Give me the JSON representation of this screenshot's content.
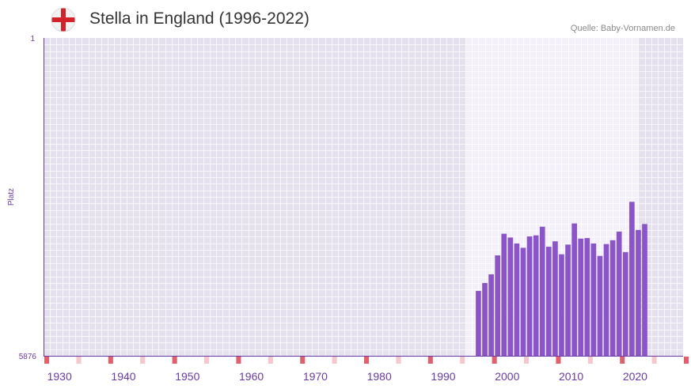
{
  "header": {
    "title": "Stella in England (1996-2022)",
    "source": "Quelle: Baby-Vornamen.de",
    "flag_icon": "england-flag-icon"
  },
  "colors": {
    "bar": "#8b55c9",
    "plot_bg": "#e4e0ee",
    "highlight_bg": "#f3f0fa",
    "accent": "#6a3aa2",
    "marker_strong": "#e0606e",
    "marker_light": "#f5c8d0",
    "flag_red": "#d2232a"
  },
  "chart_data": {
    "type": "bar",
    "title": "Stella in England (1996-2022)",
    "ylabel": "Platz",
    "xlabel": "",
    "y_top_label": "1",
    "y_bottom_label": "5876",
    "ylim": [
      1,
      5876
    ],
    "x_range": [
      1928,
      2028
    ],
    "highlight_range": [
      1994,
      2021
    ],
    "x_ticks": [
      {
        "year": 1930,
        "label": "1930"
      },
      {
        "year": 1940,
        "label": "1940"
      },
      {
        "year": 1950,
        "label": "1950"
      },
      {
        "year": 1960,
        "label": "1960"
      },
      {
        "year": 1970,
        "label": "1970"
      },
      {
        "year": 1980,
        "label": "1980"
      },
      {
        "year": 1990,
        "label": "1990"
      },
      {
        "year": 2000,
        "label": "2000"
      },
      {
        "year": 2010,
        "label": "2010"
      },
      {
        "year": 2020,
        "label": "2020"
      }
    ],
    "series": [
      {
        "name": "Stella",
        "x": [
          1996,
          1997,
          1998,
          1999,
          2000,
          2001,
          2002,
          2003,
          2004,
          2005,
          2006,
          2007,
          2008,
          2009,
          2010,
          2011,
          2012,
          2013,
          2014,
          2015,
          2016,
          2017,
          2018,
          2019,
          2020,
          2021,
          2022
        ],
        "values": [
          4676,
          4530,
          4370,
          4020,
          3620,
          3690,
          3800,
          3880,
          3670,
          3650,
          3490,
          3860,
          3760,
          4000,
          3820,
          3430,
          3710,
          3700,
          3800,
          4030,
          3810,
          3740,
          3580,
          3960,
          3030,
          3550,
          3440
        ]
      }
    ]
  }
}
